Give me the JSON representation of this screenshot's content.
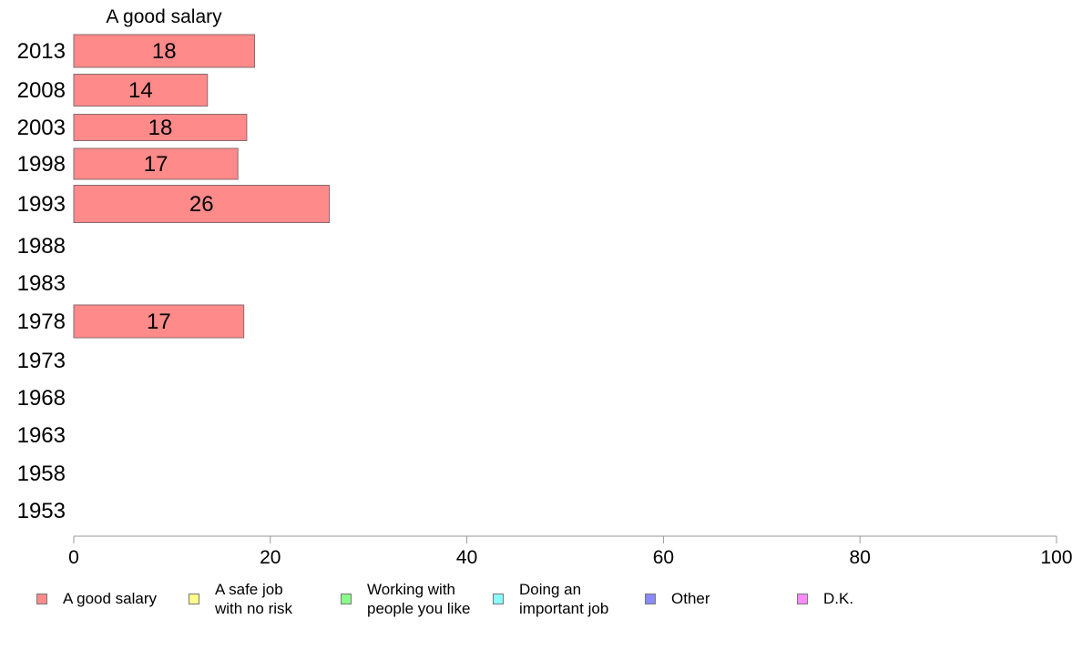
{
  "chart_data": {
    "type": "bar",
    "orientation": "horizontal",
    "title": "",
    "column_header": "A good salary",
    "categories": [
      "2013",
      "2008",
      "2003",
      "1998",
      "1993",
      "1988",
      "1983",
      "1978",
      "1973",
      "1968",
      "1963",
      "1958",
      "1953"
    ],
    "series": [
      {
        "name": "A good salary",
        "color": "#ff8a8a",
        "values": [
          18,
          14,
          18,
          17,
          26,
          null,
          null,
          17,
          null,
          null,
          null,
          null,
          null
        ],
        "bar_lengths": [
          18.4,
          13.6,
          17.6,
          16.7,
          26.0,
          null,
          null,
          17.3,
          null,
          null,
          null,
          null,
          null
        ],
        "labels": [
          "18",
          "14",
          "18",
          "17",
          "26",
          "",
          "",
          "17",
          "",
          "",
          "",
          "",
          ""
        ]
      }
    ],
    "xlim": [
      0,
      100
    ],
    "xticks": [
      "0",
      "20",
      "40",
      "60",
      "80",
      "100"
    ],
    "grid": false,
    "legend_position": "bottom",
    "legend": [
      {
        "label": "A good salary",
        "color": "#ff8a8a"
      },
      {
        "label": "A safe job\nwith no risk",
        "color": "#ffff8a"
      },
      {
        "label": "Working with\npeople you like",
        "color": "#8aff8a"
      },
      {
        "label": "Doing an\nimportant job",
        "color": "#8affff"
      },
      {
        "label": "Other",
        "color": "#8a8aff"
      },
      {
        "label": "D.K.",
        "color": "#ff8aff"
      }
    ]
  }
}
